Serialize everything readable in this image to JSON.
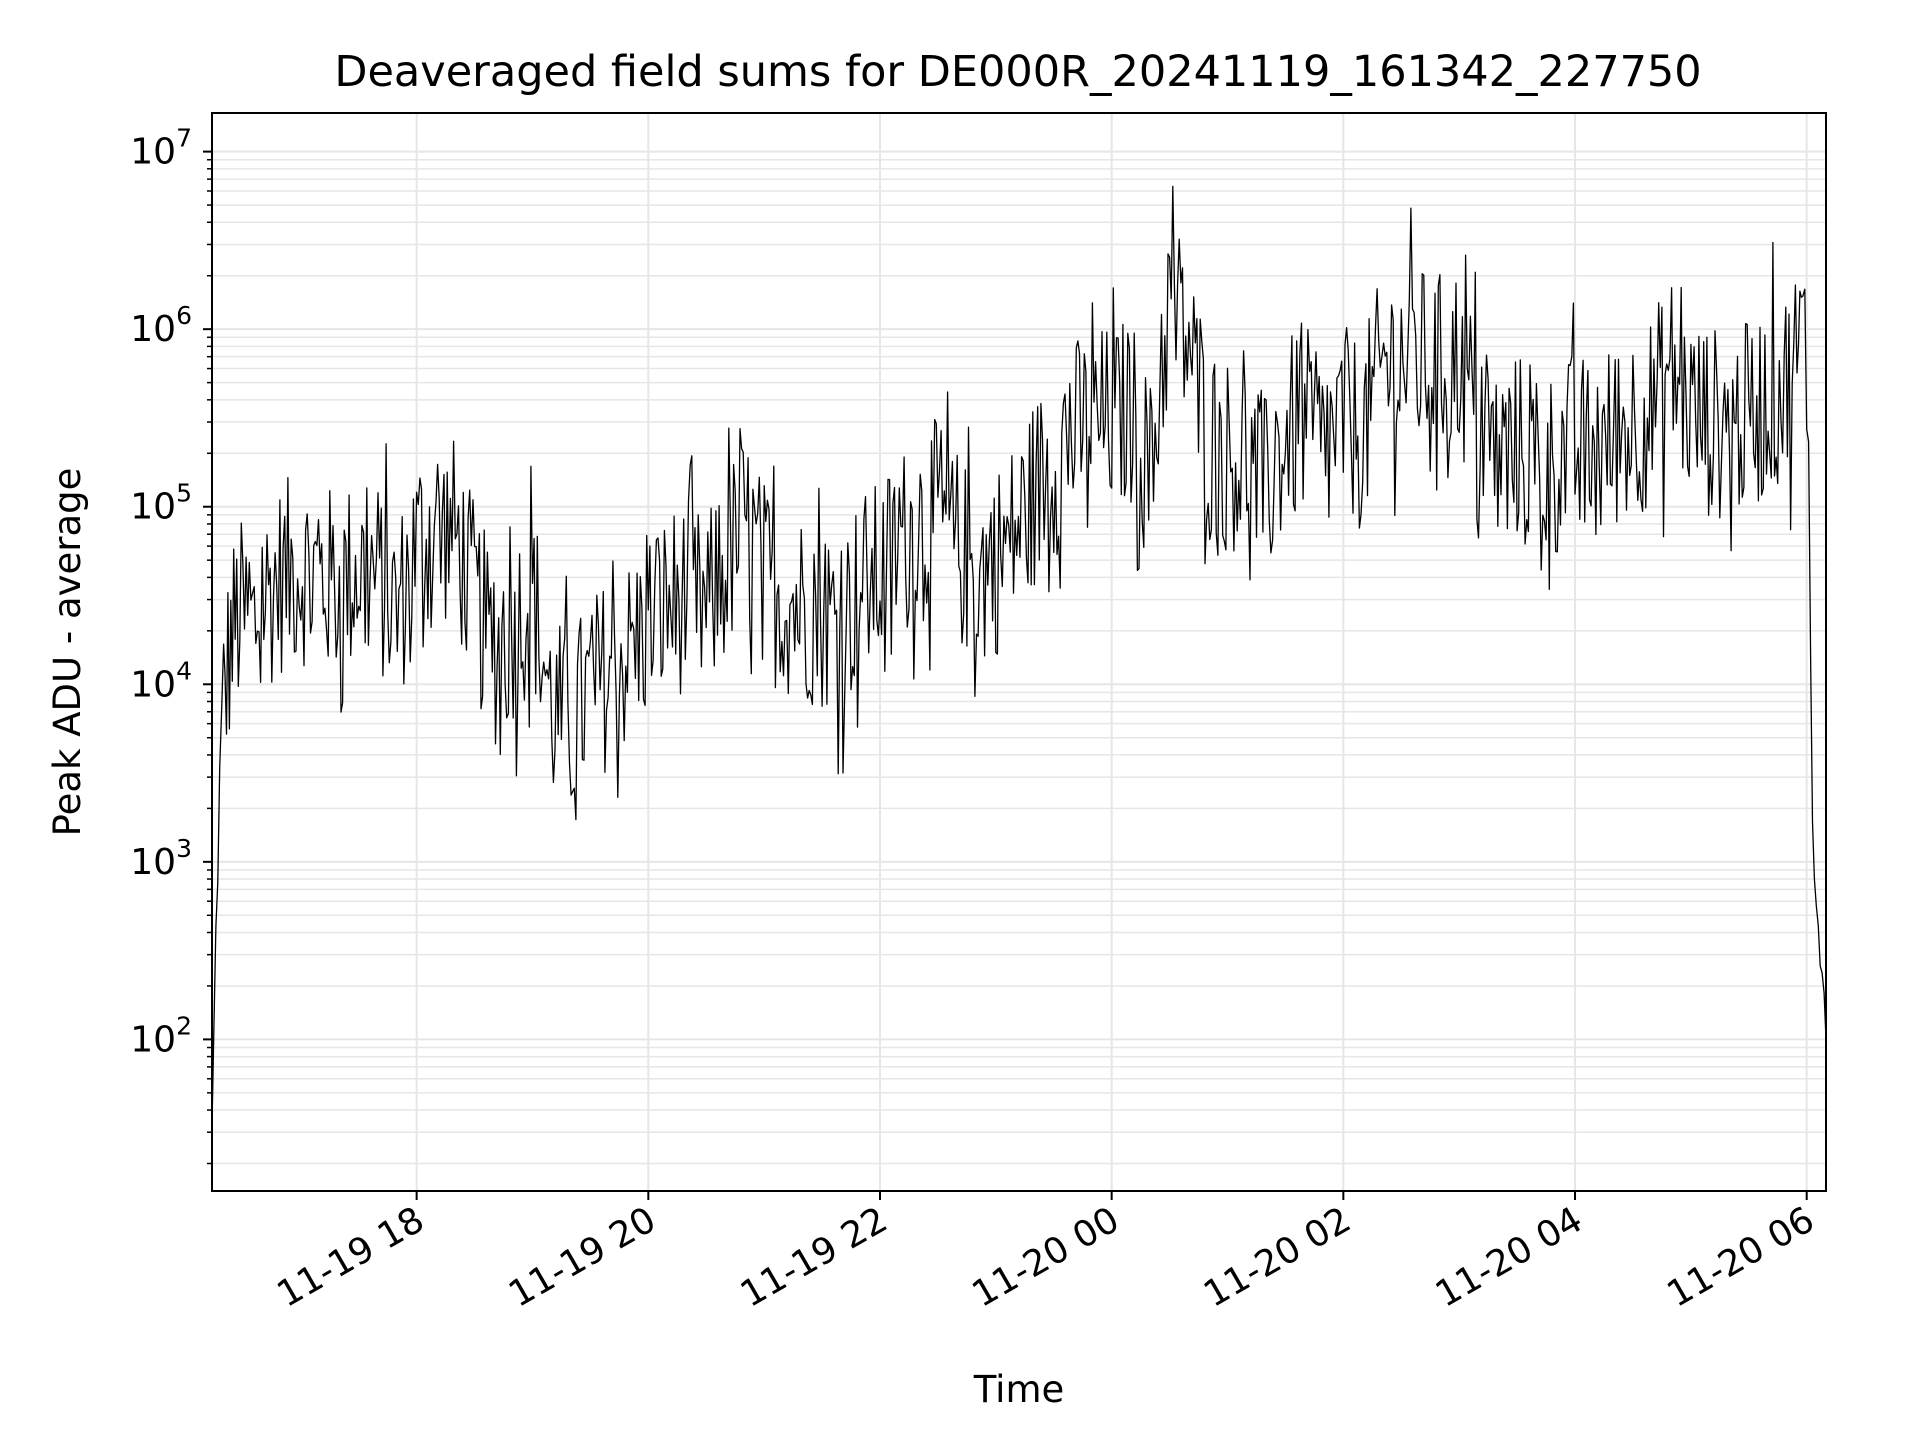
{
  "chart_data": {
    "type": "line",
    "title": "Deaveraged field sums for DE000R_20241119_161342_227750",
    "xlabel": "Time",
    "ylabel": "Peak ADU - average",
    "x_scale": "time",
    "y_scale": "log",
    "xlim": [
      "2024-11-19T16:14",
      "2024-11-20T06:10"
    ],
    "ylim": [
      14,
      16500000
    ],
    "x_ticks": [
      "11-19 18",
      "11-19 20",
      "11-19 22",
      "11-20 00",
      "11-20 02",
      "11-20 04",
      "11-20 06"
    ],
    "x_tick_times": [
      "2024-11-19T18:00",
      "2024-11-19T20:00",
      "2024-11-19T22:00",
      "2024-11-20T00:00",
      "2024-11-20T02:00",
      "2024-11-20T04:00",
      "2024-11-20T06:00"
    ],
    "y_ticks": [
      {
        "base": "10",
        "exp": "2",
        "value": 100
      },
      {
        "base": "10",
        "exp": "3",
        "value": 1000
      },
      {
        "base": "10",
        "exp": "4",
        "value": 10000
      },
      {
        "base": "10",
        "exp": "5",
        "value": 100000
      },
      {
        "base": "10",
        "exp": "6",
        "value": 1000000
      },
      {
        "base": "10",
        "exp": "7",
        "value": 10000000
      }
    ],
    "grid": true,
    "line_color": "#000000",
    "grid_color": "#e6e6e6",
    "series": [
      {
        "x": [
          "2024-11-19T16:14",
          "2024-11-19T16:16",
          "2024-11-19T16:18",
          "2024-11-19T16:20",
          "2024-11-19T16:23",
          "2024-11-19T16:26",
          "2024-11-19T16:30",
          "2024-11-19T16:35",
          "2024-11-19T16:40",
          "2024-11-19T16:50",
          "2024-11-19T17:00",
          "2024-11-19T17:10",
          "2024-11-19T17:20",
          "2024-11-19T17:30",
          "2024-11-19T17:40",
          "2024-11-19T17:50",
          "2024-11-19T18:00",
          "2024-11-19T18:10",
          "2024-11-19T18:20",
          "2024-11-19T18:30",
          "2024-11-19T18:40",
          "2024-11-19T18:50",
          "2024-11-19T19:00",
          "2024-11-19T19:10",
          "2024-11-19T19:20",
          "2024-11-19T19:30",
          "2024-11-19T19:40",
          "2024-11-19T19:50",
          "2024-11-19T20:00",
          "2024-11-19T20:10",
          "2024-11-19T20:20",
          "2024-11-19T20:30",
          "2024-11-19T20:40",
          "2024-11-19T20:50",
          "2024-11-19T21:00",
          "2024-11-19T21:10",
          "2024-11-19T21:20",
          "2024-11-19T21:30",
          "2024-11-19T21:40",
          "2024-11-19T21:50",
          "2024-11-19T22:00",
          "2024-11-19T22:10",
          "2024-11-19T22:20",
          "2024-11-19T22:30",
          "2024-11-19T22:40",
          "2024-11-19T22:50",
          "2024-11-19T23:00",
          "2024-11-19T23:10",
          "2024-11-19T23:20",
          "2024-11-19T23:30",
          "2024-11-19T23:40",
          "2024-11-19T23:50",
          "2024-11-20T00:00",
          "2024-11-20T00:10",
          "2024-11-20T00:20",
          "2024-11-20T00:30",
          "2024-11-20T00:40",
          "2024-11-20T00:50",
          "2024-11-20T01:00",
          "2024-11-20T01:10",
          "2024-11-20T01:20",
          "2024-11-20T01:30",
          "2024-11-20T01:40",
          "2024-11-20T01:50",
          "2024-11-20T02:00",
          "2024-11-20T02:10",
          "2024-11-20T02:20",
          "2024-11-20T02:30",
          "2024-11-20T02:40",
          "2024-11-20T02:50",
          "2024-11-20T03:00",
          "2024-11-20T03:10",
          "2024-11-20T03:20",
          "2024-11-20T03:30",
          "2024-11-20T03:40",
          "2024-11-20T03:50",
          "2024-11-20T04:00",
          "2024-11-20T04:10",
          "2024-11-20T04:20",
          "2024-11-20T04:30",
          "2024-11-20T04:40",
          "2024-11-20T04:50",
          "2024-11-20T05:00",
          "2024-11-20T05:10",
          "2024-11-20T05:20",
          "2024-11-20T05:30",
          "2024-11-20T05:40",
          "2024-11-20T05:50",
          "2024-11-20T05:55",
          "2024-11-20T05:58",
          "2024-11-20T06:00",
          "2024-11-20T06:01",
          "2024-11-20T06:03",
          "2024-11-20T06:05",
          "2024-11-20T06:07",
          "2024-11-20T06:09",
          "2024-11-20T06:10"
        ],
        "y": [
          30,
          400,
          2000,
          8000,
          15000,
          22000,
          25000,
          20000,
          30000,
          40000,
          45000,
          40000,
          35000,
          45000,
          40000,
          25000,
          60000,
          80000,
          70000,
          30000,
          15000,
          20000,
          35000,
          7000,
          6000,
          9000,
          12000,
          15000,
          22000,
          28000,
          32000,
          25000,
          45000,
          80000,
          40000,
          30000,
          28000,
          25000,
          22000,
          35000,
          40000,
          60000,
          80000,
          90000,
          60000,
          40000,
          50000,
          70000,
          120000,
          180000,
          250000,
          300000,
          300000,
          350000,
          150000,
          1500000,
          800000,
          250000,
          200000,
          180000,
          120000,
          250000,
          300000,
          200000,
          300000,
          250000,
          600000,
          700000,
          650000,
          600000,
          700000,
          300000,
          180000,
          220000,
          150000,
          180000,
          220000,
          180000,
          250000,
          300000,
          350000,
          600000,
          350000,
          300000,
          280000,
          320000,
          400000,
          500000,
          700000,
          900000,
          600000,
          200000,
          2000,
          500,
          300,
          180,
          100
        ]
      }
    ]
  }
}
